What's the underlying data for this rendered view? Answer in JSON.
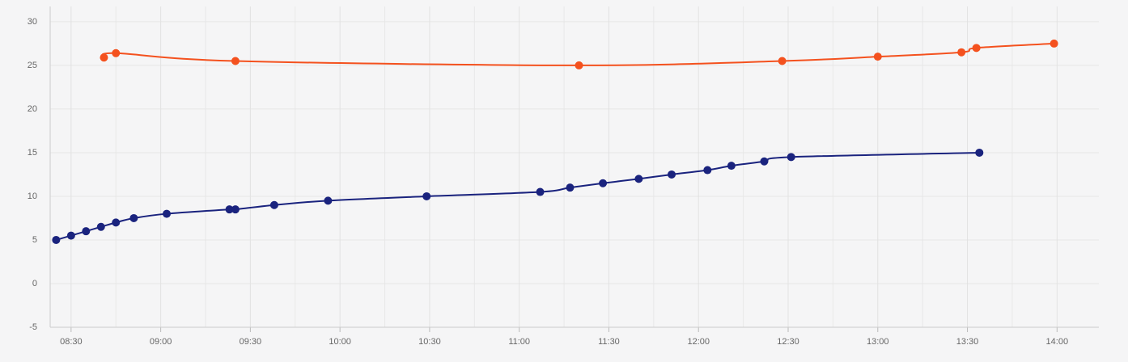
{
  "chart_data": {
    "type": "line",
    "xlim": [
      "08:23",
      "14:14"
    ],
    "xticks": [
      "08:30",
      "09:00",
      "09:30",
      "10:00",
      "10:30",
      "11:00",
      "11:30",
      "12:00",
      "12:30",
      "13:00",
      "13:30",
      "14:00"
    ],
    "minor_xticks": [
      "08:45",
      "09:15",
      "09:45",
      "10:15",
      "10:45",
      "11:15",
      "11:45",
      "12:15",
      "12:45",
      "13:15",
      "13:45"
    ],
    "ylim": [
      -5,
      31.75
    ],
    "yticks": [
      -5,
      0,
      5,
      10,
      15,
      20,
      25,
      30
    ],
    "grid": true,
    "series": [
      {
        "color": "#f4511e",
        "x": [
          "08:41",
          "08:45",
          "09:25",
          "11:20",
          "12:28",
          "13:00",
          "13:28",
          "13:33",
          "13:59"
        ],
        "values": [
          25.9,
          26.4,
          25.5,
          25.0,
          25.5,
          26.0,
          26.5,
          27.0,
          27.5
        ]
      },
      {
        "color": "#1a237e",
        "x": [
          "08:25",
          "08:30",
          "08:35",
          "08:40",
          "08:45",
          "08:51",
          "09:02",
          "09:23",
          "09:25",
          "09:38",
          "09:56",
          "10:29",
          "11:07",
          "11:17",
          "11:28",
          "11:40",
          "11:51",
          "12:03",
          "12:11",
          "12:22",
          "12:31",
          "13:34"
        ],
        "values": [
          5.0,
          5.5,
          6.0,
          6.5,
          7.0,
          7.5,
          8.0,
          8.5,
          8.5,
          9.0,
          9.5,
          10.0,
          10.5,
          11.0,
          11.5,
          12.0,
          12.5,
          13.0,
          13.5,
          14.0,
          14.5,
          15.0
        ]
      }
    ]
  }
}
